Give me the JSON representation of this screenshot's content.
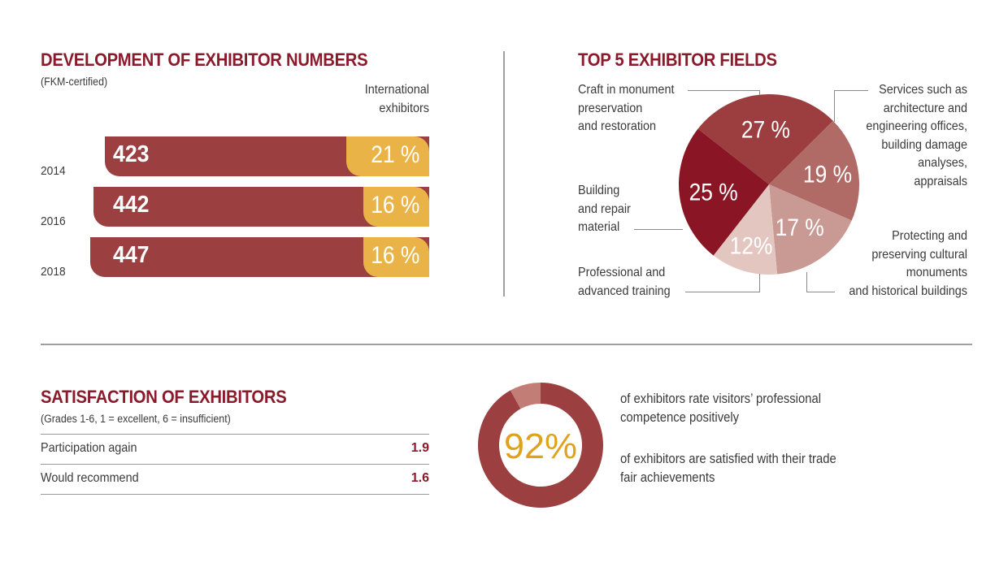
{
  "colors": {
    "heading": "#8b1a2b",
    "bar_total": "#9c3f41",
    "bar_international": "#e9b347",
    "pie": [
      "#9c3d3f",
      "#b06b66",
      "#c99a94",
      "#e4c6c1",
      "#8a1625"
    ],
    "donut_main": "#9c3f41",
    "donut_rest": "#c27d77",
    "donut_text": "#e0a21c"
  },
  "exhibitors": {
    "title": "DEVELOPMENT OF EXHIBITOR NUMBERS",
    "subtitle": "(FKM-certified)",
    "intl_header_line1": "International",
    "intl_header_line2": "exhibitors"
  },
  "fields": {
    "title": "TOP 5  EXHIBITOR FIELDS",
    "labels": {
      "craft": [
        "Craft in monument",
        "preservation",
        "and restoration"
      ],
      "services": [
        "Services such as",
        "architecture and",
        "engineering offices,",
        "building damage",
        "analyses,",
        "appraisals"
      ],
      "building": [
        "Building",
        "and repair",
        "material"
      ],
      "protecting": [
        "Protecting and",
        "preserving cultural",
        "monuments",
        "and historical buildings"
      ],
      "training": [
        "Professional and",
        "advanced training"
      ]
    }
  },
  "satisfaction": {
    "title": "SATISFACTION OF EXHIBITORS",
    "subtitle": "(Grades 1-6, 1 = excellent, 6 = insufficient)",
    "rows": [
      {
        "label": "Participation again",
        "value": "1.9"
      },
      {
        "label": "Would recommend",
        "value": "1.6"
      }
    ],
    "donut_label": "92%",
    "statement1": [
      "of exhibitors rate visitors’ professional",
      "competence positively"
    ],
    "statement2": [
      "of exhibitors are satisfied with their trade",
      "fair achievements"
    ]
  },
  "chart_data": [
    {
      "type": "bar",
      "title": "DEVELOPMENT OF EXHIBITOR NUMBERS",
      "subtitle": "(FKM-certified)",
      "orientation": "horizontal",
      "categories": [
        "2014",
        "2016",
        "2018"
      ],
      "series": [
        {
          "name": "Exhibitors",
          "values": [
            423,
            442,
            447
          ],
          "labels": [
            "423",
            "442",
            "447"
          ]
        },
        {
          "name": "International exhibitors",
          "values": [
            21,
            16,
            16
          ],
          "unit": "%",
          "labels": [
            "21 %",
            "16 %",
            "16 %"
          ]
        }
      ]
    },
    {
      "type": "pie",
      "title": "TOP 5  EXHIBITOR FIELDS",
      "slices": [
        {
          "name": "Craft in monument preservation and restoration",
          "value": 27,
          "label": "27 %"
        },
        {
          "name": "Services such as architecture and engineering offices, building damage analyses, appraisals",
          "value": 19,
          "label": "19 %"
        },
        {
          "name": "Protecting and preserving cultural monuments and historical buildings",
          "value": 17,
          "label": "17 %"
        },
        {
          "name": "Professional and advanced training",
          "value": 12,
          "label": "12%"
        },
        {
          "name": "Building and repair material",
          "value": 25,
          "label": "25 %"
        }
      ]
    },
    {
      "type": "table",
      "title": "SATISFACTION OF EXHIBITORS",
      "subtitle": "(Grades 1-6, 1 = excellent, 6 = insufficient)",
      "rows": [
        [
          "Participation again",
          1.9
        ],
        [
          "Would recommend",
          1.6
        ]
      ]
    },
    {
      "type": "pie",
      "subtype": "donut",
      "slices": [
        {
          "name": "positive",
          "value": 92,
          "label": "92%"
        },
        {
          "name": "rest",
          "value": 8
        }
      ]
    }
  ]
}
